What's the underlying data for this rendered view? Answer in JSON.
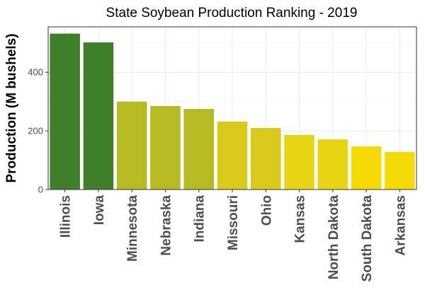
{
  "chart_data": {
    "type": "bar",
    "title": "State Soybean Production Ranking - 2019",
    "xlabel": "",
    "ylabel": "Production (M bushels)",
    "ylim": [
      0,
      555
    ],
    "yticks": [
      0,
      200,
      400
    ],
    "grid": true,
    "categories": [
      "Illinois",
      "Iowa",
      "Minnesota",
      "Nebraska",
      "Indiana",
      "Missouri",
      "Ohio",
      "Kansas",
      "North Dakota",
      "South Dakota",
      "Arkansas"
    ],
    "values": [
      532,
      502,
      300,
      285,
      275,
      232,
      210,
      186,
      171,
      147,
      128
    ],
    "colors": [
      "#3F7F2A",
      "#3F7F2A",
      "#B8BA23",
      "#B8BA23",
      "#B8BA23",
      "#D8C91B",
      "#D8C91B",
      "#E7D412",
      "#E7D412",
      "#F6DA05",
      "#F6DA05"
    ]
  }
}
